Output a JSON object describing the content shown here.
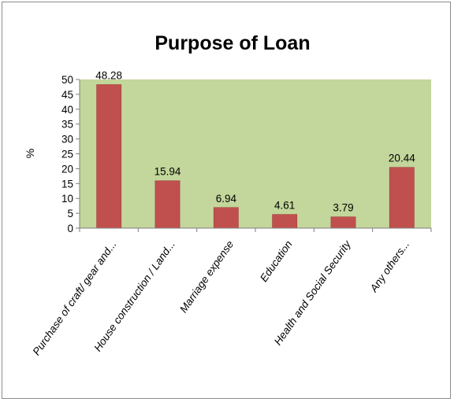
{
  "chart_data": {
    "type": "bar",
    "title": "Purpose  of Loan",
    "xlabel": "",
    "ylabel": "%",
    "ylim": [
      0,
      50
    ],
    "yticks": [
      0,
      5,
      10,
      15,
      20,
      25,
      30,
      35,
      40,
      45,
      50
    ],
    "grid": false,
    "categories": [
      "Purchase of craft/ gear and...",
      "House construction / Land...",
      "Marriage expense",
      "Education",
      "Health and Social Security",
      "Any others..."
    ],
    "values": [
      48.28,
      15.94,
      6.94,
      4.61,
      3.79,
      20.44
    ],
    "data_labels": [
      "48.28",
      "15.94",
      "6.94",
      "4.61",
      "3.79",
      "20.44"
    ],
    "colors": {
      "plot_background": "#c3d69b",
      "bar": "#c0504d",
      "bar_edge": "#a33e3b",
      "axis": "#7f7f7f"
    }
  }
}
